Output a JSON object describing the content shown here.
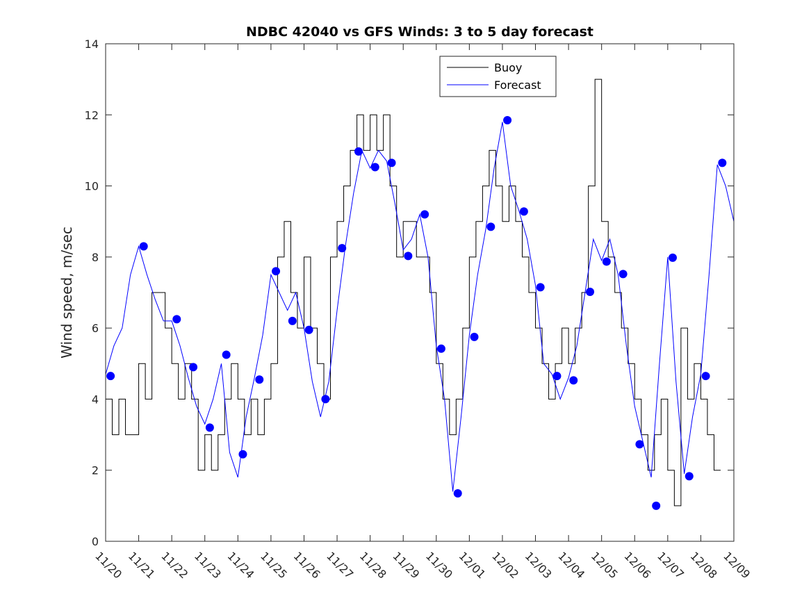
{
  "chart_data": {
    "type": "line",
    "title": "NDBC 42040 vs GFS Winds: 3 to 5 day forecast",
    "xlabel": "",
    "ylabel": "Wind speed, m/sec",
    "ylim": [
      0,
      14
    ],
    "xlim": [
      0,
      19
    ],
    "yticks": [
      0,
      2,
      4,
      6,
      8,
      10,
      12,
      14
    ],
    "xticks": [
      0,
      1,
      2,
      3,
      4,
      5,
      6,
      7,
      8,
      9,
      10,
      11,
      12,
      13,
      14,
      15,
      16,
      17,
      18,
      19
    ],
    "xticklabels": [
      "11/20",
      "11/21",
      "11/22",
      "11/23",
      "11/24",
      "11/25",
      "11/26",
      "11/27",
      "11/28",
      "11/29",
      "11/30",
      "12/01",
      "12/02",
      "12/03",
      "12/04",
      "12/05",
      "12/06",
      "12/07",
      "12/08",
      "12/09"
    ],
    "legend": {
      "placement": "top-right",
      "entries": [
        "Buoy",
        "Forecast"
      ]
    },
    "colors": {
      "buoy": "#000000",
      "forecast": "#0000ff",
      "marker": "#0000ff",
      "axis": "#262626"
    },
    "series": [
      {
        "name": "Buoy",
        "x": [
          0,
          0.2,
          0.4,
          0.6,
          0.8,
          1.0,
          1.2,
          1.4,
          1.6,
          1.8,
          2.0,
          2.2,
          2.4,
          2.6,
          2.8,
          3.0,
          3.2,
          3.4,
          3.6,
          3.8,
          4.0,
          4.2,
          4.4,
          4.6,
          4.8,
          5.0,
          5.2,
          5.4,
          5.6,
          5.8,
          6.0,
          6.2,
          6.4,
          6.6,
          6.8,
          7.0,
          7.2,
          7.4,
          7.6,
          7.8,
          8.0,
          8.2,
          8.4,
          8.6,
          8.8,
          9.0,
          9.2,
          9.4,
          9.6,
          9.8,
          10.0,
          10.2,
          10.4,
          10.6,
          10.8,
          11.0,
          11.2,
          11.4,
          11.6,
          11.8,
          12.0,
          12.2,
          12.4,
          12.6,
          12.8,
          13.0,
          13.2,
          13.4,
          13.6,
          13.8,
          14.0,
          14.2,
          14.4,
          14.6,
          14.8,
          15.0,
          15.2,
          15.4,
          15.6,
          15.8,
          16.0,
          16.2,
          16.4,
          16.6,
          16.8,
          17.0,
          17.2,
          17.4,
          17.6,
          17.8,
          18.0,
          18.2,
          18.4
        ],
        "values": [
          4,
          3,
          4,
          3,
          3,
          5,
          4,
          7,
          7,
          6,
          5,
          4,
          5,
          4,
          2,
          3,
          2,
          3,
          4,
          5,
          4,
          3,
          4,
          3,
          4,
          5,
          8,
          9,
          7,
          6,
          8,
          6,
          5,
          4,
          8,
          9,
          10,
          11,
          12,
          11,
          12,
          11,
          12,
          10,
          8,
          9,
          9,
          8,
          8,
          7,
          5,
          4,
          3,
          4,
          6,
          8,
          9,
          10,
          11,
          10,
          9,
          10,
          9,
          8,
          7,
          6,
          5,
          4,
          5,
          6,
          5,
          6,
          7,
          10,
          13,
          9,
          8,
          7,
          6,
          5,
          4,
          3,
          2,
          3,
          4,
          2,
          1,
          6,
          4,
          5,
          4,
          3,
          2
        ]
      },
      {
        "name": "Forecast",
        "x": [
          0,
          0.25,
          0.5,
          0.75,
          1.0,
          1.25,
          1.5,
          1.75,
          2.0,
          2.25,
          2.5,
          2.75,
          3.0,
          3.25,
          3.5,
          3.75,
          4.0,
          4.25,
          4.5,
          4.75,
          5.0,
          5.25,
          5.5,
          5.75,
          6.0,
          6.25,
          6.5,
          6.75,
          7.0,
          7.25,
          7.5,
          7.75,
          8.0,
          8.25,
          8.5,
          8.75,
          9.0,
          9.25,
          9.5,
          9.75,
          10.0,
          10.25,
          10.5,
          10.75,
          11.0,
          11.25,
          11.5,
          11.75,
          12.0,
          12.25,
          12.5,
          12.75,
          13.0,
          13.25,
          13.5,
          13.75,
          14.0,
          14.25,
          14.5,
          14.75,
          15.0,
          15.25,
          15.5,
          15.75,
          16.0,
          16.25,
          16.5,
          16.75,
          17.0,
          17.25,
          17.5,
          17.75,
          18.0,
          18.25,
          18.5,
          18.75,
          19.0
        ],
        "values": [
          4.7,
          5.5,
          6.0,
          7.5,
          8.3,
          7.5,
          6.8,
          6.2,
          6.2,
          5.5,
          4.6,
          3.8,
          3.3,
          4.0,
          5.0,
          2.5,
          1.8,
          3.5,
          4.6,
          5.8,
          7.5,
          7.0,
          6.5,
          7.0,
          6.0,
          4.5,
          3.5,
          4.5,
          6.5,
          8.3,
          9.8,
          11.0,
          10.5,
          11.0,
          10.7,
          9.5,
          8.2,
          8.5,
          9.2,
          8.0,
          5.5,
          4.0,
          1.4,
          3.5,
          5.8,
          7.5,
          8.8,
          10.5,
          11.8,
          10.0,
          9.3,
          8.5,
          7.2,
          5.0,
          4.7,
          4.0,
          4.6,
          5.5,
          7.0,
          8.5,
          7.9,
          8.5,
          7.5,
          5.5,
          3.8,
          2.8,
          1.8,
          5.0,
          8.0,
          4.5,
          1.9,
          3.5,
          4.7,
          7.5,
          10.6,
          10.0,
          9.0
        ]
      }
    ],
    "markers": {
      "name": "Forecast markers",
      "x": [
        0.15,
        1.15,
        2.15,
        2.65,
        3.15,
        3.65,
        4.15,
        4.65,
        5.15,
        5.65,
        6.15,
        6.65,
        7.15,
        7.65,
        8.15,
        8.65,
        9.15,
        9.65,
        10.15,
        10.65,
        11.15,
        11.65,
        12.15,
        12.65,
        13.15,
        13.65,
        14.15,
        14.65,
        15.15,
        15.65,
        16.15,
        16.65,
        17.15,
        17.65,
        18.15,
        18.65
      ],
      "values": [
        4.65,
        8.3,
        6.25,
        4.9,
        3.2,
        5.25,
        2.45,
        4.55,
        7.6,
        6.2,
        5.95,
        4.0,
        8.25,
        10.97,
        10.53,
        10.65,
        8.03,
        9.2,
        5.42,
        1.35,
        5.75,
        8.85,
        11.85,
        9.28,
        7.15,
        4.65,
        4.53,
        7.02,
        7.87,
        7.52,
        2.73,
        1.0,
        7.98,
        1.83,
        4.65,
        10.65
      ]
    }
  }
}
